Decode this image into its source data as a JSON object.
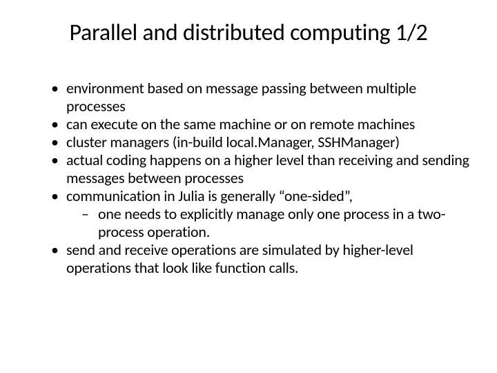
{
  "slide": {
    "title": "Parallel and distributed computing 1/2",
    "title_fontsize": 34,
    "body_fontsize": 22,
    "text_color": "#000000",
    "background_color": "#ffffff",
    "bullets": [
      {
        "text": "environment based on message passing between multiple processes",
        "sub": []
      },
      {
        "text": "can execute on the same machine or on remote machines",
        "sub": []
      },
      {
        "text": "cluster managers (in-build local.Manager, SSHManager)",
        "sub": []
      },
      {
        "text": "actual coding happens on a higher level than receiving and sending messages between processes",
        "sub": []
      },
      {
        "text": "communication in Julia is generally “one-sided”,",
        "sub": [
          {
            "text": "one needs to explicitly manage only one process in a two-process operation."
          }
        ]
      },
      {
        "text": "send and receive operations are simulated by higher-level operations that look like function calls.",
        "sub": []
      }
    ]
  }
}
